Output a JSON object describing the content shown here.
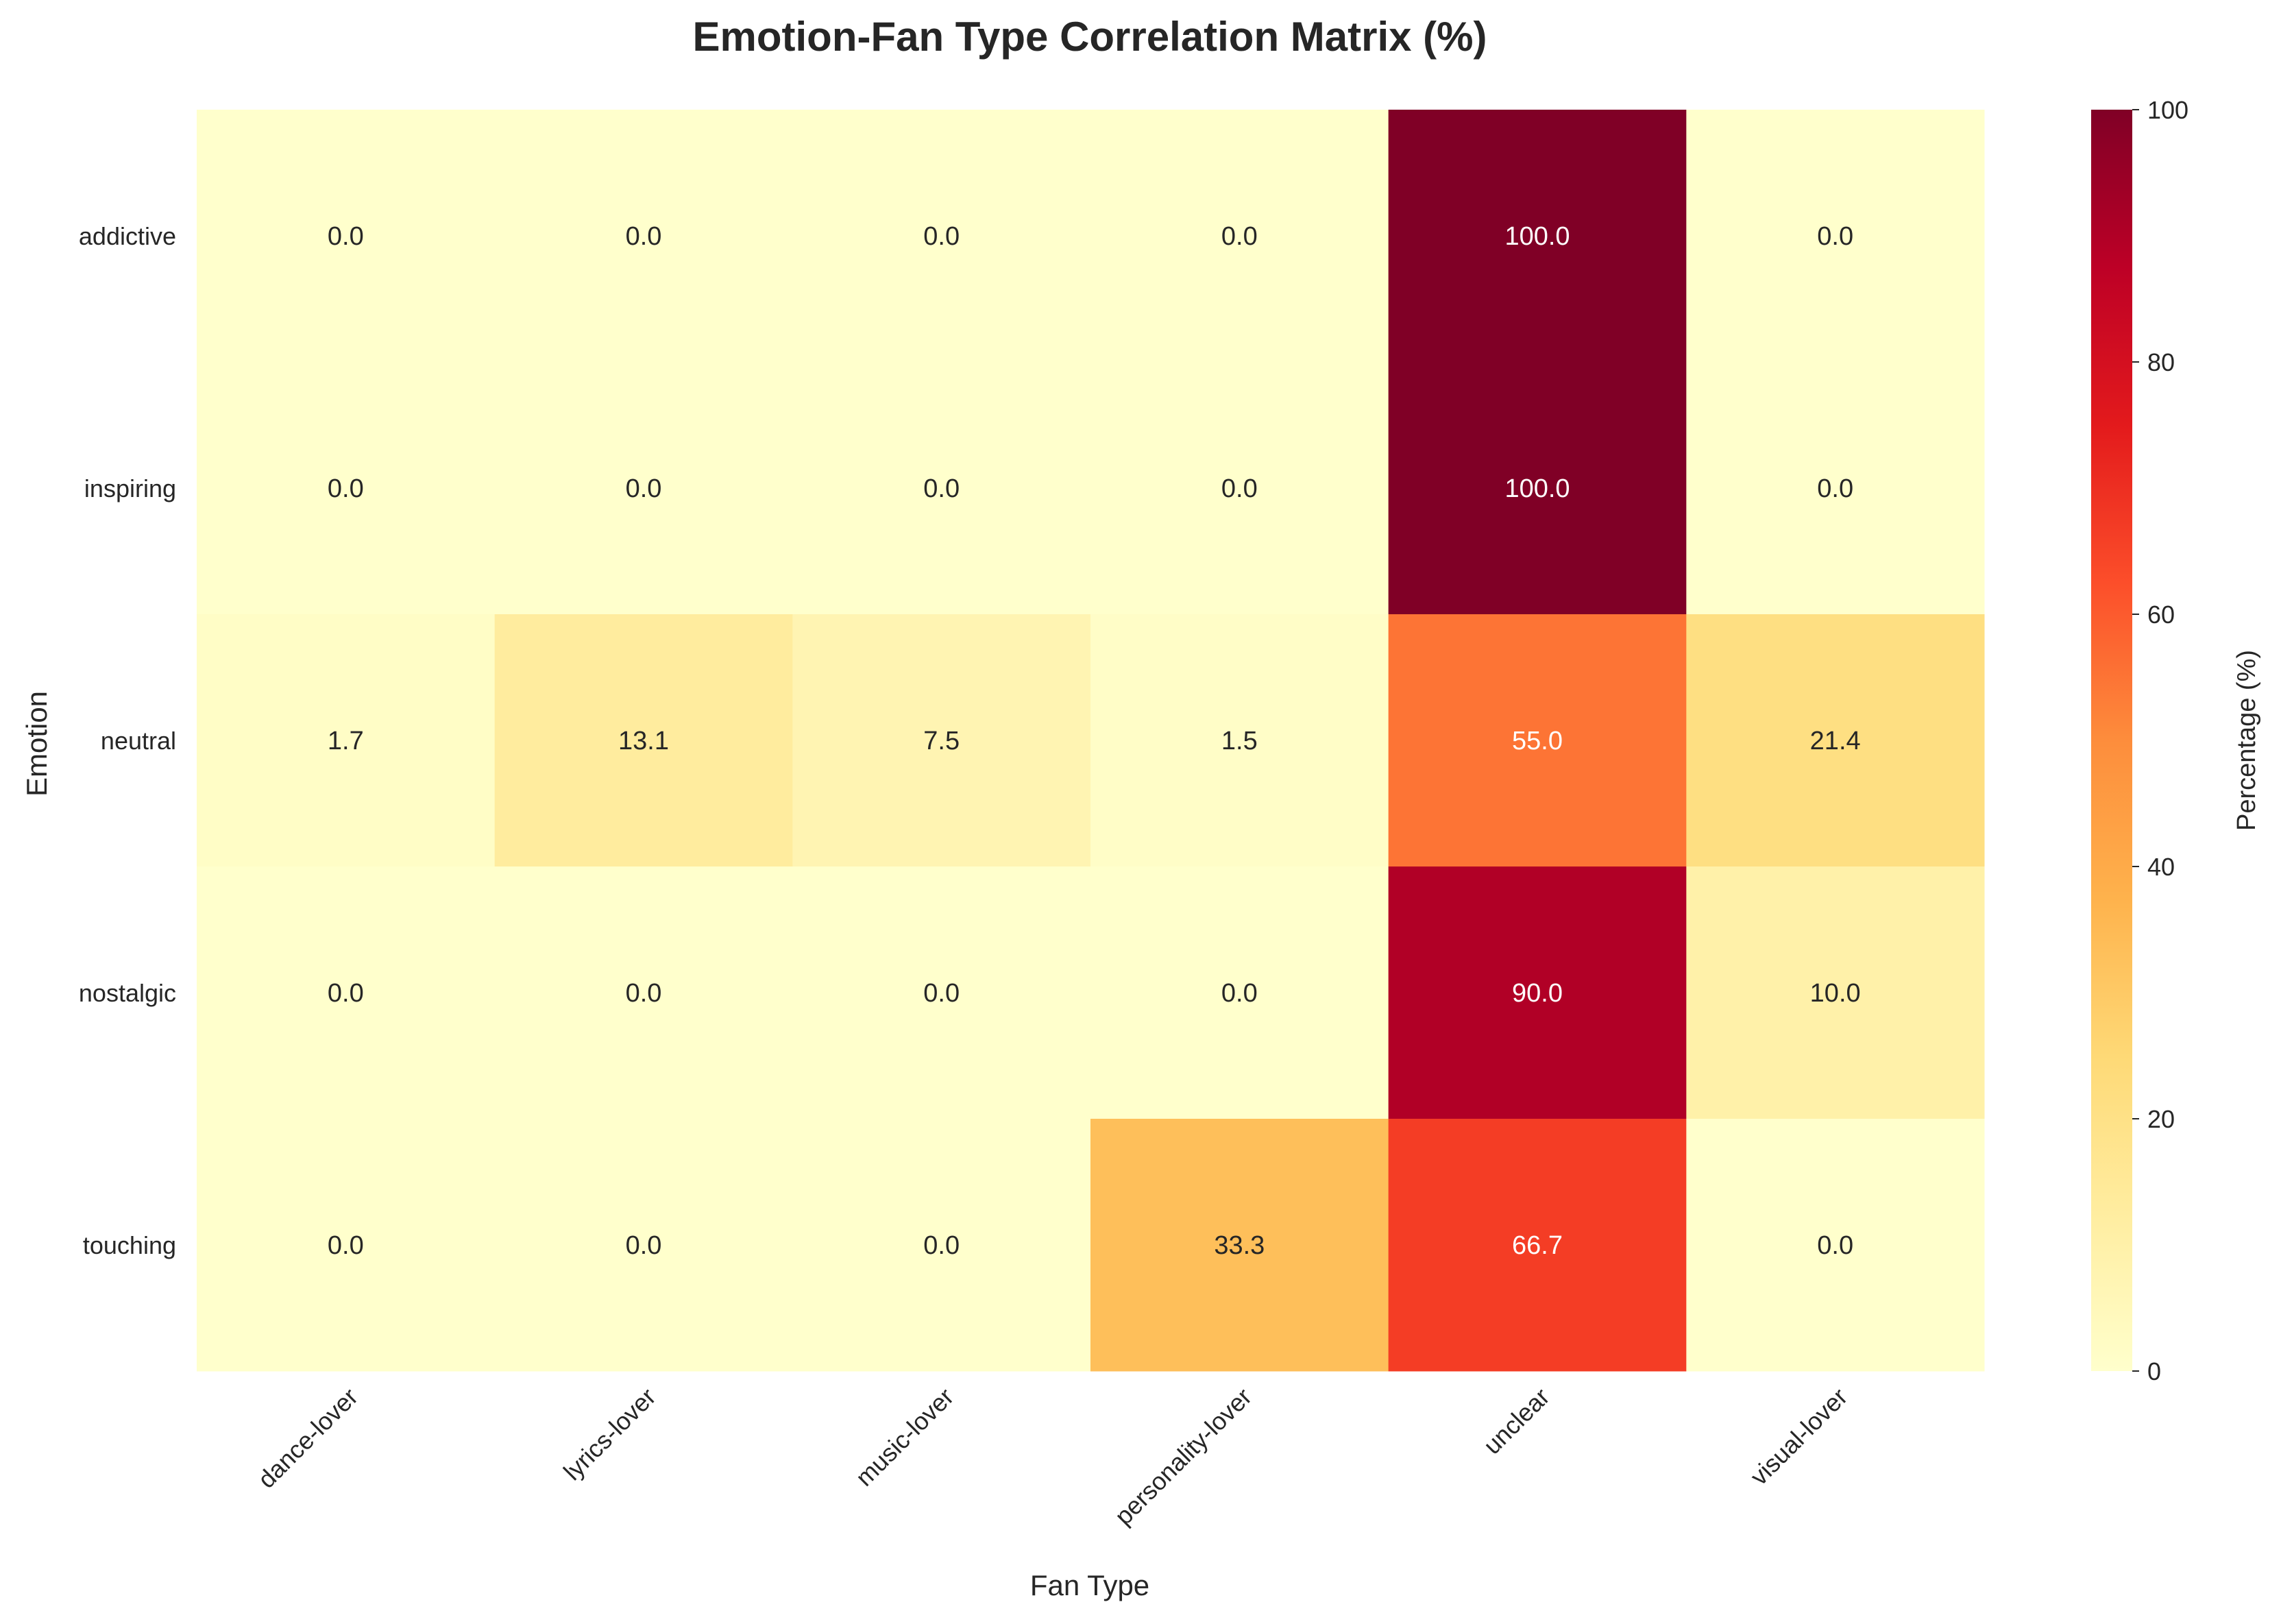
{
  "chart_data": {
    "type": "heatmap",
    "title": "Emotion-Fan Type Correlation Matrix (%)",
    "xlabel": "Fan Type",
    "ylabel": "Emotion",
    "x_categories": [
      "dance-lover",
      "lyrics-lover",
      "music-lover",
      "personality-lover",
      "unclear",
      "visual-lover"
    ],
    "y_categories": [
      "addictive",
      "inspiring",
      "neutral",
      "nostalgic",
      "touching"
    ],
    "values": [
      [
        0.0,
        0.0,
        0.0,
        0.0,
        100.0,
        0.0
      ],
      [
        0.0,
        0.0,
        0.0,
        0.0,
        100.0,
        0.0
      ],
      [
        1.7,
        13.1,
        7.5,
        1.5,
        55.0,
        21.4
      ],
      [
        0.0,
        0.0,
        0.0,
        0.0,
        90.0,
        10.0
      ],
      [
        0.0,
        0.0,
        0.0,
        33.3,
        66.7,
        0.0
      ]
    ],
    "value_format": "0.0",
    "colormap": "YlOrRd",
    "colorbar": {
      "label": "Percentage (%)",
      "range": [
        0,
        100
      ],
      "ticks": [
        0,
        20,
        40,
        60,
        80,
        100
      ]
    },
    "colors": {
      "text_dark": "#262626",
      "text_light": "#ffffff"
    }
  }
}
